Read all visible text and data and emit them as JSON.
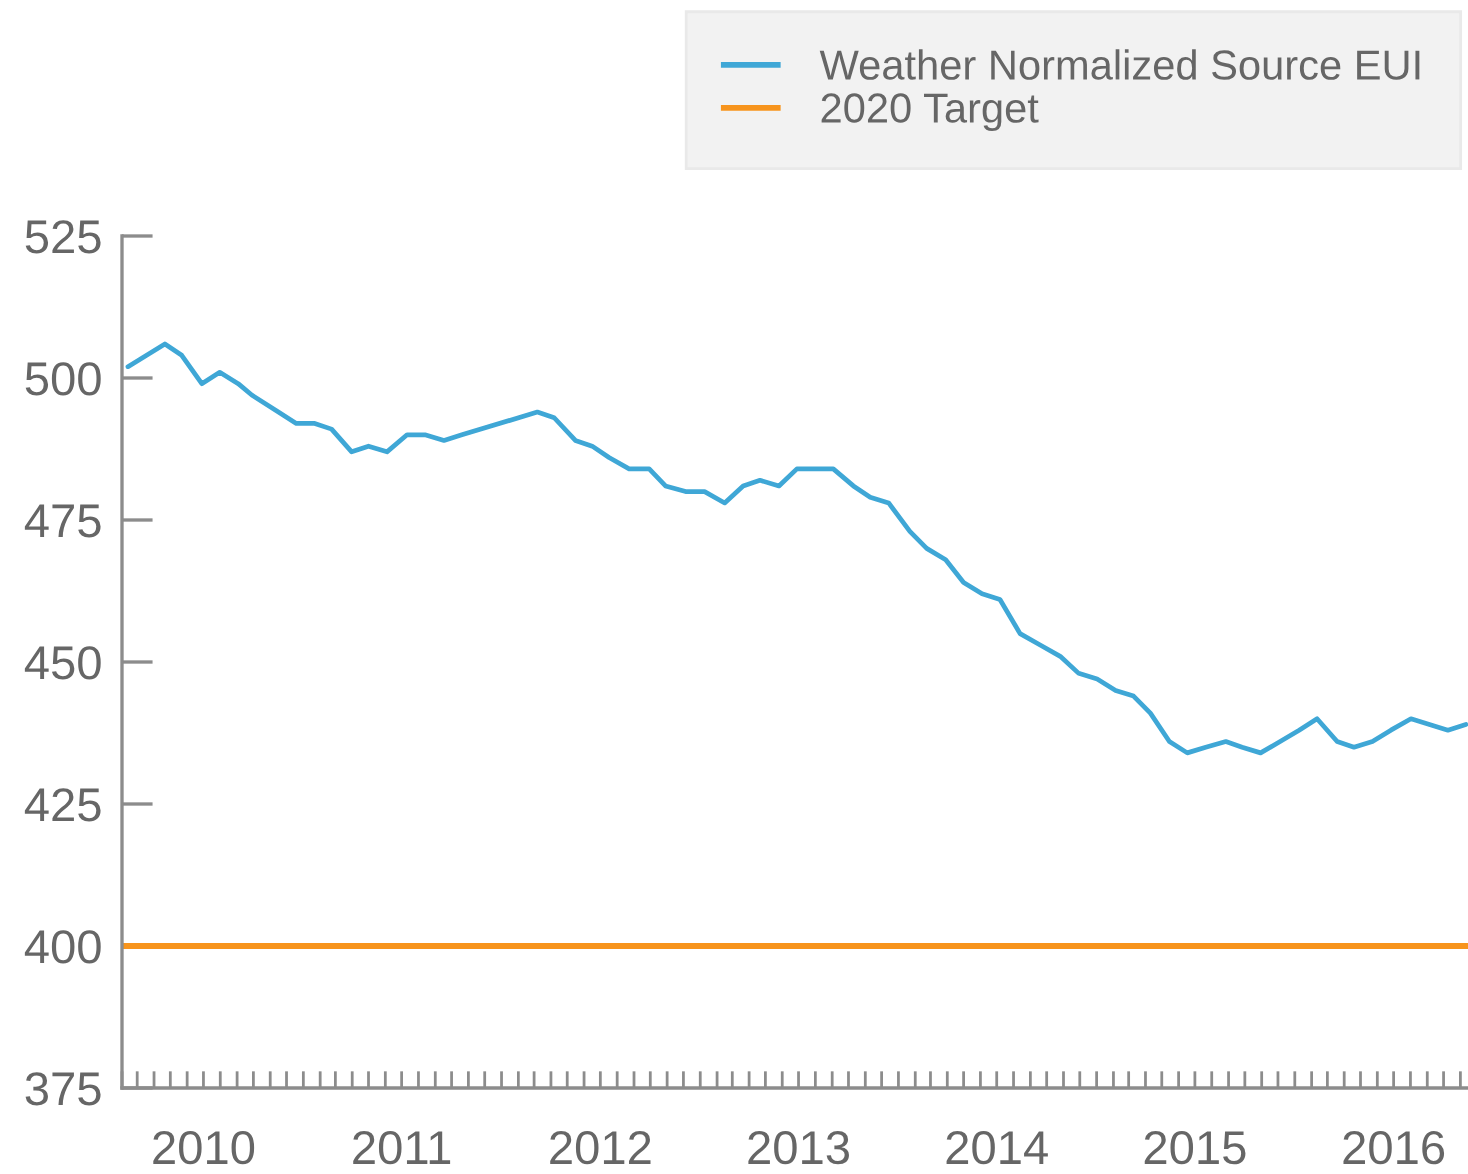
{
  "chart_data": {
    "type": "line",
    "x": [
      "2010-02-12",
      "2010-04-21",
      "2010-05-22",
      "2010-06-28",
      "2010-07-31",
      "2010-09-03",
      "2010-09-28",
      "2010-11-16",
      "2010-12-19",
      "2011-01-22",
      "2011-02-22",
      "2011-03-31",
      "2011-05-01",
      "2011-06-04",
      "2011-07-11",
      "2011-08-13",
      "2011-09-17",
      "2011-10-20",
      "2012-03-07",
      "2012-04-07",
      "2012-05-16",
      "2012-06-16",
      "2012-07-17",
      "2012-08-23",
      "2012-09-29",
      "2012-10-29",
      "2012-12-05",
      "2013-01-09",
      "2013-02-15",
      "2013-03-21",
      "2013-04-21",
      "2013-05-26",
      "2013-06-28",
      "2013-09-03",
      "2013-10-10",
      "2013-11-10",
      "2013-12-14",
      "2014-01-22",
      "2014-02-22",
      "2014-03-29",
      "2014-05-01",
      "2014-06-04",
      "2014-07-07",
      "2014-08-13",
      "2014-09-19",
      "2014-10-26",
      "2014-11-29",
      "2015-01-02",
      "2015-02-05",
      "2015-03-10",
      "2015-04-10",
      "2015-05-15",
      "2015-06-17",
      "2015-07-21",
      "2015-08-27",
      "2015-09-26",
      "2015-10-30",
      "2015-12-05",
      "2016-01-09",
      "2016-02-11",
      "2016-03-19",
      "2016-04-19",
      "2016-05-23",
      "2016-06-26",
      "2016-08-02",
      "2016-09-05",
      "2016-10-09",
      "2016-11-11"
    ],
    "series": [
      {
        "name": "Weather Normalized Source EUI",
        "color": "#3fa7d6",
        "values": [
          502,
          506,
          504,
          499,
          501,
          499,
          497,
          494,
          492,
          492,
          491,
          487,
          488,
          487,
          490,
          490,
          489,
          490,
          494,
          493,
          489,
          488,
          486,
          484,
          484,
          481,
          480,
          480,
          478,
          481,
          482,
          481,
          484,
          484,
          481,
          479,
          478,
          473,
          470,
          468,
          464,
          462,
          461,
          455,
          453,
          451,
          448,
          447,
          445,
          444,
          441,
          436,
          434,
          435,
          436,
          435,
          434,
          436,
          438,
          440,
          436,
          435,
          436,
          438,
          440,
          439,
          438,
          439
        ]
      }
    ],
    "ref_lines": [
      {
        "axis": "y",
        "value": 400,
        "label": "2020 Target",
        "color": "#f7941d"
      }
    ],
    "xlim": [
      "2010-02-01",
      "2016-11-15"
    ],
    "xticks": [
      {
        "value": "2010-02",
        "label": null
      },
      {
        "value": "2010-03",
        "label": null
      },
      {
        "value": "2010-04",
        "label": null
      },
      {
        "value": "2010-05",
        "label": null
      },
      {
        "value": "2010-06",
        "label": null
      },
      {
        "value": "2010-07",
        "label": "2010"
      },
      {
        "value": "2010-08",
        "label": null
      },
      {
        "value": "2010-09",
        "label": null
      },
      {
        "value": "2010-10",
        "label": null
      },
      {
        "value": "2010-11",
        "label": null
      },
      {
        "value": "2010-12",
        "label": null
      },
      {
        "value": "2011-01",
        "label": null
      },
      {
        "value": "2011-02",
        "label": null
      },
      {
        "value": "2011-03",
        "label": null
      },
      {
        "value": "2011-04",
        "label": null
      },
      {
        "value": "2011-05",
        "label": null
      },
      {
        "value": "2011-06",
        "label": null
      },
      {
        "value": "2011-07",
        "label": "2011"
      },
      {
        "value": "2011-08",
        "label": null
      },
      {
        "value": "2011-09",
        "label": null
      },
      {
        "value": "2011-10",
        "label": null
      },
      {
        "value": "2011-11",
        "label": null
      },
      {
        "value": "2011-12",
        "label": null
      },
      {
        "value": "2012-01",
        "label": null
      },
      {
        "value": "2012-02",
        "label": null
      },
      {
        "value": "2012-03",
        "label": null
      },
      {
        "value": "2012-04",
        "label": null
      },
      {
        "value": "2012-05",
        "label": null
      },
      {
        "value": "2012-06",
        "label": null
      },
      {
        "value": "2012-07",
        "label": "2012"
      },
      {
        "value": "2012-08",
        "label": null
      },
      {
        "value": "2012-09",
        "label": null
      },
      {
        "value": "2012-10",
        "label": null
      },
      {
        "value": "2012-11",
        "label": null
      },
      {
        "value": "2012-12",
        "label": null
      },
      {
        "value": "2013-01",
        "label": null
      },
      {
        "value": "2013-02",
        "label": null
      },
      {
        "value": "2013-03",
        "label": null
      },
      {
        "value": "2013-04",
        "label": null
      },
      {
        "value": "2013-05",
        "label": null
      },
      {
        "value": "2013-06",
        "label": null
      },
      {
        "value": "2013-07",
        "label": "2013"
      },
      {
        "value": "2013-08",
        "label": null
      },
      {
        "value": "2013-09",
        "label": null
      },
      {
        "value": "2013-10",
        "label": null
      },
      {
        "value": "2013-11",
        "label": null
      },
      {
        "value": "2013-12",
        "label": null
      },
      {
        "value": "2014-01",
        "label": null
      },
      {
        "value": "2014-02",
        "label": null
      },
      {
        "value": "2014-03",
        "label": null
      },
      {
        "value": "2014-04",
        "label": null
      },
      {
        "value": "2014-05",
        "label": null
      },
      {
        "value": "2014-06",
        "label": null
      },
      {
        "value": "2014-07",
        "label": "2014"
      },
      {
        "value": "2014-08",
        "label": null
      },
      {
        "value": "2014-09",
        "label": null
      },
      {
        "value": "2014-10",
        "label": null
      },
      {
        "value": "2014-11",
        "label": null
      },
      {
        "value": "2014-12",
        "label": null
      },
      {
        "value": "2015-01",
        "label": null
      },
      {
        "value": "2015-02",
        "label": null
      },
      {
        "value": "2015-03",
        "label": null
      },
      {
        "value": "2015-04",
        "label": null
      },
      {
        "value": "2015-05",
        "label": null
      },
      {
        "value": "2015-06",
        "label": null
      },
      {
        "value": "2015-07",
        "label": "2015"
      },
      {
        "value": "2015-08",
        "label": null
      },
      {
        "value": "2015-09",
        "label": null
      },
      {
        "value": "2015-10",
        "label": null
      },
      {
        "value": "2015-11",
        "label": null
      },
      {
        "value": "2015-12",
        "label": null
      },
      {
        "value": "2016-01",
        "label": null
      },
      {
        "value": "2016-02",
        "label": null
      },
      {
        "value": "2016-03",
        "label": null
      },
      {
        "value": "2016-04",
        "label": null
      },
      {
        "value": "2016-05",
        "label": null
      },
      {
        "value": "2016-06",
        "label": null
      },
      {
        "value": "2016-07",
        "label": "2016"
      },
      {
        "value": "2016-08",
        "label": null
      },
      {
        "value": "2016-09",
        "label": null
      },
      {
        "value": "2016-10",
        "label": null
      },
      {
        "value": "2016-11",
        "label": null
      }
    ],
    "ylim": [
      375,
      525
    ],
    "yticks": [
      375,
      400,
      425,
      450,
      475,
      500,
      525
    ],
    "legend": "top right"
  }
}
